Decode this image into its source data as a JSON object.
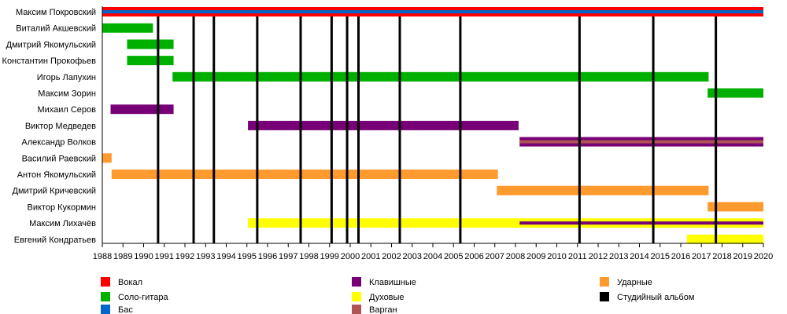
{
  "chart_data": {
    "type": "timeline",
    "xlim": [
      1988,
      2020
    ],
    "x_ticks": [
      1988,
      1989,
      1990,
      1991,
      1992,
      1993,
      1994,
      1995,
      1996,
      1997,
      1998,
      1999,
      2000,
      2001,
      2002,
      2003,
      2004,
      2005,
      2006,
      2007,
      2008,
      2009,
      2010,
      2011,
      2012,
      2013,
      2014,
      2015,
      2016,
      2017,
      2018,
      2019,
      2020
    ],
    "roles": {
      "vocal": {
        "label": "Вокал",
        "color": "#FF0000"
      },
      "guitar": {
        "label": "Соло-гитара",
        "color": "#00B000"
      },
      "bass": {
        "label": "Бас",
        "color": "#0066CC"
      },
      "keys": {
        "label": "Клавишные",
        "color": "#770077"
      },
      "winds": {
        "label": "Духовые",
        "color": "#FFFF00"
      },
      "varg": {
        "label": "Варган",
        "color": "#B05454"
      },
      "drums": {
        "label": "Ударные",
        "color": "#FF9A2E"
      },
      "album": {
        "label": "Студийный альбом",
        "color": "#000000"
      }
    },
    "legend_order": [
      [
        "vocal",
        "guitar",
        "bass"
      ],
      [
        "keys",
        "winds",
        "varg"
      ],
      [
        "drums",
        "album"
      ]
    ],
    "members": [
      {
        "name": "Максим Покровский",
        "periods": [
          {
            "role": "vocal",
            "from": 1988,
            "to": 2020,
            "inner": "bass"
          }
        ]
      },
      {
        "name": "Виталий Акшевский",
        "periods": [
          {
            "role": "guitar",
            "from": 1988,
            "to": 1990.45
          }
        ]
      },
      {
        "name": "Дмитрий Якомульский",
        "periods": [
          {
            "role": "guitar",
            "from": 1989.2,
            "to": 1991.45
          }
        ]
      },
      {
        "name": "Константин Прокофьев",
        "periods": [
          {
            "role": "guitar",
            "from": 1989.2,
            "to": 1991.45
          }
        ]
      },
      {
        "name": "Игорь Лапухин",
        "periods": [
          {
            "role": "guitar",
            "from": 1991.4,
            "to": 2017.35
          }
        ]
      },
      {
        "name": "Максим Зорин",
        "periods": [
          {
            "role": "guitar",
            "from": 2017.3,
            "to": 2020
          }
        ]
      },
      {
        "name": "Михаил Серов",
        "periods": [
          {
            "role": "keys",
            "from": 1988.4,
            "to": 1991.45
          }
        ]
      },
      {
        "name": "Виктор Медведев",
        "periods": [
          {
            "role": "keys",
            "from": 1995.05,
            "to": 2008.15
          }
        ]
      },
      {
        "name": "Александр Волков",
        "periods": [
          {
            "role": "keys",
            "from": 2008.2,
            "to": 2020,
            "inner": "varg"
          }
        ]
      },
      {
        "name": "Василий Раевский",
        "periods": [
          {
            "role": "drums",
            "from": 1988,
            "to": 1988.45
          }
        ]
      },
      {
        "name": "Антон Якомульский",
        "periods": [
          {
            "role": "drums",
            "from": 1988.45,
            "to": 2007.15
          }
        ]
      },
      {
        "name": "Дмитрий Кричевский",
        "periods": [
          {
            "role": "drums",
            "from": 2007.1,
            "to": 2017.35
          }
        ]
      },
      {
        "name": "Виктор Кукормин",
        "periods": [
          {
            "role": "drums",
            "from": 2017.3,
            "to": 2020
          }
        ]
      },
      {
        "name": "Максим Лихачёв",
        "periods": [
          {
            "role": "winds",
            "from": 1995.05,
            "to": 2020
          },
          {
            "role": "winds",
            "from": 2008.2,
            "to": 2020,
            "inner": "keys"
          }
        ]
      },
      {
        "name": "Евгений Кондратьев",
        "periods": [
          {
            "role": "winds",
            "from": 2016.3,
            "to": 2020
          }
        ]
      }
    ],
    "albums": [
      1990.7,
      1992.42,
      1993.4,
      1995.5,
      1997.6,
      1999.1,
      1999.85,
      2000.4,
      2002.4,
      2005.33,
      2011.1,
      2014.67,
      2017.7
    ]
  }
}
